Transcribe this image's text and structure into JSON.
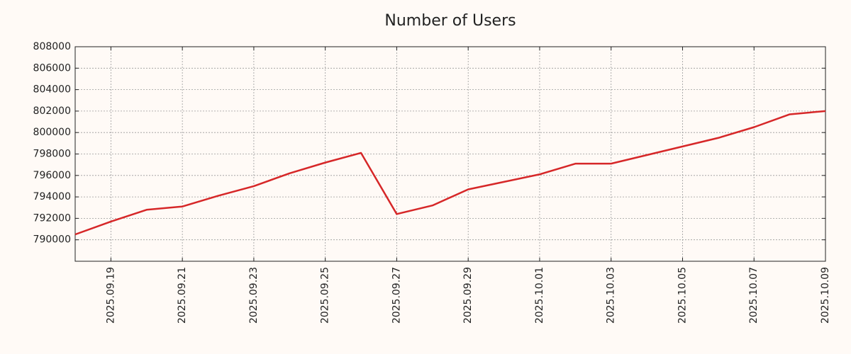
{
  "chart_data": {
    "type": "line",
    "title": "Number of Users",
    "x": [
      "2025.09.18",
      "2025.09.19",
      "2025.09.20",
      "2025.09.21",
      "2025.09.22",
      "2025.09.23",
      "2025.09.24",
      "2025.09.25",
      "2025.09.26",
      "2025.09.27",
      "2025.09.28",
      "2025.09.29",
      "2025.09.30",
      "2025.10.01",
      "2025.10.02",
      "2025.10.03",
      "2025.10.04",
      "2025.10.05",
      "2025.10.06",
      "2025.10.07",
      "2025.10.08",
      "2025.10.09"
    ],
    "series": [
      {
        "name": "Users",
        "color": "#d62728",
        "values": [
          790500,
          791700,
          792800,
          793100,
          794100,
          795000,
          796200,
          797200,
          798100,
          792400,
          793200,
          794700,
          795400,
          796100,
          797100,
          797100,
          797900,
          798700,
          799500,
          800500,
          801700,
          802000
        ]
      }
    ],
    "xlim": [
      "2025.09.18",
      "2025.10.09"
    ],
    "xticks": [
      "2025.09.19",
      "2025.09.21",
      "2025.09.23",
      "2025.09.25",
      "2025.09.27",
      "2025.09.29",
      "2025.10.01",
      "2025.10.03",
      "2025.10.05",
      "2025.10.07",
      "2025.10.09"
    ],
    "ylim": [
      788000,
      808000
    ],
    "yticks": [
      790000,
      792000,
      794000,
      796000,
      798000,
      800000,
      802000,
      804000,
      806000,
      808000
    ],
    "grid": true
  }
}
